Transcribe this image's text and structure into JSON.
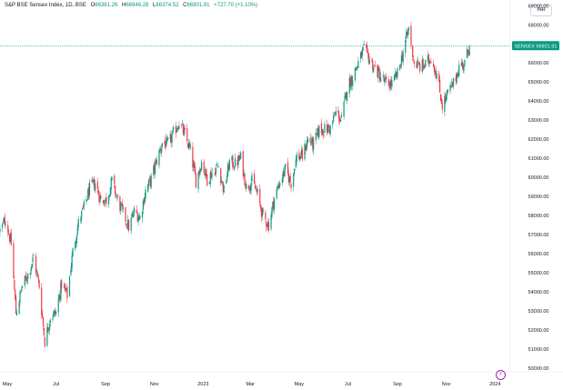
{
  "legend": {
    "symbol": "S&P BSE Sensex Index, 1D, BSE",
    "o_label": "O",
    "o_value": "66381.26",
    "h_label": "H",
    "h_value": "66946.28",
    "l_label": "L",
    "l_value": "66374.52",
    "c_label": "C",
    "c_value": "66901.91",
    "change": "+727.70 (+1.10%)"
  },
  "currency_button": "INR",
  "price_tag": {
    "ticker": "SENSEX",
    "value": "66901.91"
  },
  "logo_icon": "tradingview-logo-icon",
  "colors": {
    "up": "#089981",
    "down": "#f23645",
    "price_line": "#089981"
  },
  "chart_data": {
    "type": "candlestick",
    "title": "S&P BSE Sensex Index, 1D, BSE",
    "xlabel": "",
    "ylabel": "",
    "ylim": [
      49800,
      69300
    ],
    "grid": false,
    "y_ticks": [
      50000,
      51000,
      52000,
      53000,
      54000,
      55000,
      56000,
      57000,
      58000,
      59000,
      60000,
      61000,
      62000,
      63000,
      64000,
      65000,
      66000,
      67000,
      68000,
      69000
    ],
    "y_tick_labels": [
      "50000.00",
      "51000.00",
      "52000.00",
      "53000.00",
      "54000.00",
      "55000.00",
      "56000.00",
      "57000.00",
      "58000.00",
      "59000.00",
      "60000.00",
      "61000.00",
      "62000.00",
      "63000.00",
      "64000.00",
      "65000.00",
      "66000.00",
      "67000.00",
      "68000.00",
      "69000.00"
    ],
    "x_range": [
      "2022-04-22",
      "2024-01-20"
    ],
    "x_ticks": [
      {
        "date": "2022-05-01",
        "label": "May"
      },
      {
        "date": "2022-07-01",
        "label": "Jul"
      },
      {
        "date": "2022-09-01",
        "label": "Sep"
      },
      {
        "date": "2022-11-01",
        "label": "Nov"
      },
      {
        "date": "2023-01-01",
        "label": "2023"
      },
      {
        "date": "2023-03-01",
        "label": "Mar"
      },
      {
        "date": "2023-05-01",
        "label": "May"
      },
      {
        "date": "2023-07-01",
        "label": "Jul"
      },
      {
        "date": "2023-09-01",
        "label": "Sep"
      },
      {
        "date": "2023-11-01",
        "label": "Nov"
      },
      {
        "date": "2024-01-01",
        "label": "2024"
      }
    ],
    "last_price": 66901.91,
    "close_path": [
      {
        "date": "2022-04-22",
        "close": 57200
      },
      {
        "date": "2022-04-29",
        "close": 57800
      },
      {
        "date": "2022-05-06",
        "close": 56500
      },
      {
        "date": "2022-05-12",
        "close": 52900
      },
      {
        "date": "2022-05-20",
        "close": 54300
      },
      {
        "date": "2022-05-27",
        "close": 54900
      },
      {
        "date": "2022-06-03",
        "close": 55800
      },
      {
        "date": "2022-06-10",
        "close": 54300
      },
      {
        "date": "2022-06-17",
        "close": 51400
      },
      {
        "date": "2022-06-24",
        "close": 52700
      },
      {
        "date": "2022-07-01",
        "close": 52900
      },
      {
        "date": "2022-07-08",
        "close": 54400
      },
      {
        "date": "2022-07-15",
        "close": 53800
      },
      {
        "date": "2022-07-22",
        "close": 56100
      },
      {
        "date": "2022-07-29",
        "close": 57600
      },
      {
        "date": "2022-08-05",
        "close": 58400
      },
      {
        "date": "2022-08-12",
        "close": 59400
      },
      {
        "date": "2022-08-19",
        "close": 59700
      },
      {
        "date": "2022-08-26",
        "close": 58800
      },
      {
        "date": "2022-09-02",
        "close": 58800
      },
      {
        "date": "2022-09-09",
        "close": 59800
      },
      {
        "date": "2022-09-16",
        "close": 58800
      },
      {
        "date": "2022-09-23",
        "close": 58100
      },
      {
        "date": "2022-09-30",
        "close": 57400
      },
      {
        "date": "2022-10-07",
        "close": 58200
      },
      {
        "date": "2022-10-14",
        "close": 57900
      },
      {
        "date": "2022-10-21",
        "close": 59300
      },
      {
        "date": "2022-10-28",
        "close": 59900
      },
      {
        "date": "2022-11-04",
        "close": 60900
      },
      {
        "date": "2022-11-11",
        "close": 61800
      },
      {
        "date": "2022-11-18",
        "close": 61700
      },
      {
        "date": "2022-11-25",
        "close": 62300
      },
      {
        "date": "2022-12-02",
        "close": 62900
      },
      {
        "date": "2022-12-09",
        "close": 62200
      },
      {
        "date": "2022-12-16",
        "close": 61400
      },
      {
        "date": "2022-12-23",
        "close": 59800
      },
      {
        "date": "2022-12-30",
        "close": 60800
      },
      {
        "date": "2023-01-06",
        "close": 59900
      },
      {
        "date": "2023-01-13",
        "close": 60300
      },
      {
        "date": "2023-01-20",
        "close": 60600
      },
      {
        "date": "2023-01-27",
        "close": 59300
      },
      {
        "date": "2023-02-03",
        "close": 60800
      },
      {
        "date": "2023-02-10",
        "close": 60700
      },
      {
        "date": "2023-02-17",
        "close": 61000
      },
      {
        "date": "2023-02-24",
        "close": 59500
      },
      {
        "date": "2023-03-03",
        "close": 59800
      },
      {
        "date": "2023-03-10",
        "close": 59100
      },
      {
        "date": "2023-03-17",
        "close": 57900
      },
      {
        "date": "2023-03-24",
        "close": 57500
      },
      {
        "date": "2023-03-31",
        "close": 58900
      },
      {
        "date": "2023-04-07",
        "close": 59800
      },
      {
        "date": "2023-04-14",
        "close": 60400
      },
      {
        "date": "2023-04-21",
        "close": 59700
      },
      {
        "date": "2023-04-28",
        "close": 61100
      },
      {
        "date": "2023-05-05",
        "close": 61100
      },
      {
        "date": "2023-05-12",
        "close": 62000
      },
      {
        "date": "2023-05-19",
        "close": 61700
      },
      {
        "date": "2023-05-26",
        "close": 62500
      },
      {
        "date": "2023-06-02",
        "close": 62500
      },
      {
        "date": "2023-06-09",
        "close": 62600
      },
      {
        "date": "2023-06-16",
        "close": 63400
      },
      {
        "date": "2023-06-23",
        "close": 63000
      },
      {
        "date": "2023-06-30",
        "close": 64700
      },
      {
        "date": "2023-07-07",
        "close": 65300
      },
      {
        "date": "2023-07-14",
        "close": 66000
      },
      {
        "date": "2023-07-21",
        "close": 66700
      },
      {
        "date": "2023-07-28",
        "close": 66200
      },
      {
        "date": "2023-08-04",
        "close": 65700
      },
      {
        "date": "2023-08-11",
        "close": 65300
      },
      {
        "date": "2023-08-18",
        "close": 64900
      },
      {
        "date": "2023-08-25",
        "close": 64900
      },
      {
        "date": "2023-09-01",
        "close": 65400
      },
      {
        "date": "2023-09-08",
        "close": 66600
      },
      {
        "date": "2023-09-15",
        "close": 67800
      },
      {
        "date": "2023-09-22",
        "close": 66000
      },
      {
        "date": "2023-09-29",
        "close": 65800
      },
      {
        "date": "2023-10-06",
        "close": 65900
      },
      {
        "date": "2023-10-13",
        "close": 66300
      },
      {
        "date": "2023-10-20",
        "close": 65400
      },
      {
        "date": "2023-10-27",
        "close": 63800
      },
      {
        "date": "2023-11-03",
        "close": 64400
      },
      {
        "date": "2023-11-10",
        "close": 64900
      },
      {
        "date": "2023-11-17",
        "close": 65800
      },
      {
        "date": "2023-11-24",
        "close": 66000
      },
      {
        "date": "2023-11-30",
        "close": 66901.91
      }
    ]
  }
}
